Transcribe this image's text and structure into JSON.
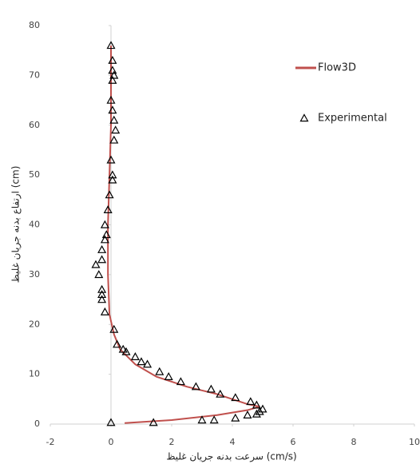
{
  "chart_data": {
    "type": "scatter",
    "x_label": "سرعت بدنه جریان غلیظ (cm/s)",
    "y_label": "ارتفاع بدنه جریان غلیظ (cm)",
    "xlim": [
      -2,
      10
    ],
    "xticks": [
      -2,
      0,
      2,
      4,
      6,
      8,
      10
    ],
    "ylim": [
      0,
      80
    ],
    "yticks": [
      0,
      10,
      20,
      30,
      40,
      50,
      60,
      70,
      80
    ],
    "grid": false,
    "legend": "top-right",
    "series": [
      {
        "name": "Flow3D",
        "color": "#c0504d",
        "mode": "line",
        "x": [
          0.45,
          2,
          3.5,
          4.5,
          4.9,
          4.5,
          3.5,
          2.5,
          1.5,
          0.8,
          0.3,
          0.1,
          -0.05,
          -0.1,
          -0.1,
          -0.05,
          0,
          0,
          0
        ],
        "values": [
          0.2,
          0.8,
          1.8,
          2.8,
          3.5,
          4,
          6,
          7.5,
          9.5,
          12,
          15,
          18,
          22,
          30,
          40,
          50,
          60,
          70,
          76
        ]
      },
      {
        "name": "Experimental",
        "color": "#000000",
        "mode": "markers",
        "x": [
          0,
          0.05,
          0.05,
          0.1,
          0.05,
          0,
          0.05,
          0.1,
          0.15,
          0.1,
          0,
          0.05,
          0.05,
          -0.05,
          -0.1,
          -0.2,
          -0.15,
          -0.2,
          -0.3,
          -0.3,
          -0.5,
          -0.4,
          -0.3,
          -0.3,
          -0.3,
          -0.2,
          0.1,
          0.2,
          0.4,
          0.5,
          0.8,
          1,
          1.2,
          1.6,
          1.9,
          2.3,
          2.8,
          3.3,
          3.6,
          4.1,
          4.6,
          4.8,
          5,
          4.9,
          4.8,
          4.5,
          4.1,
          3.4,
          3,
          1.4,
          0
        ],
        "values": [
          76,
          73,
          71,
          70,
          69,
          65,
          63,
          61,
          59,
          57,
          53,
          50,
          49,
          46,
          43,
          40,
          38,
          37,
          35,
          33,
          32,
          30,
          27,
          26,
          25,
          22.5,
          19,
          16,
          15,
          14.5,
          13.5,
          12.5,
          12,
          10.5,
          9.5,
          8.5,
          7.5,
          7,
          6,
          5.3,
          4.5,
          3.8,
          3,
          2.5,
          2,
          1.8,
          1.2,
          0.8,
          0.8,
          0.3,
          0.3
        ]
      }
    ]
  }
}
